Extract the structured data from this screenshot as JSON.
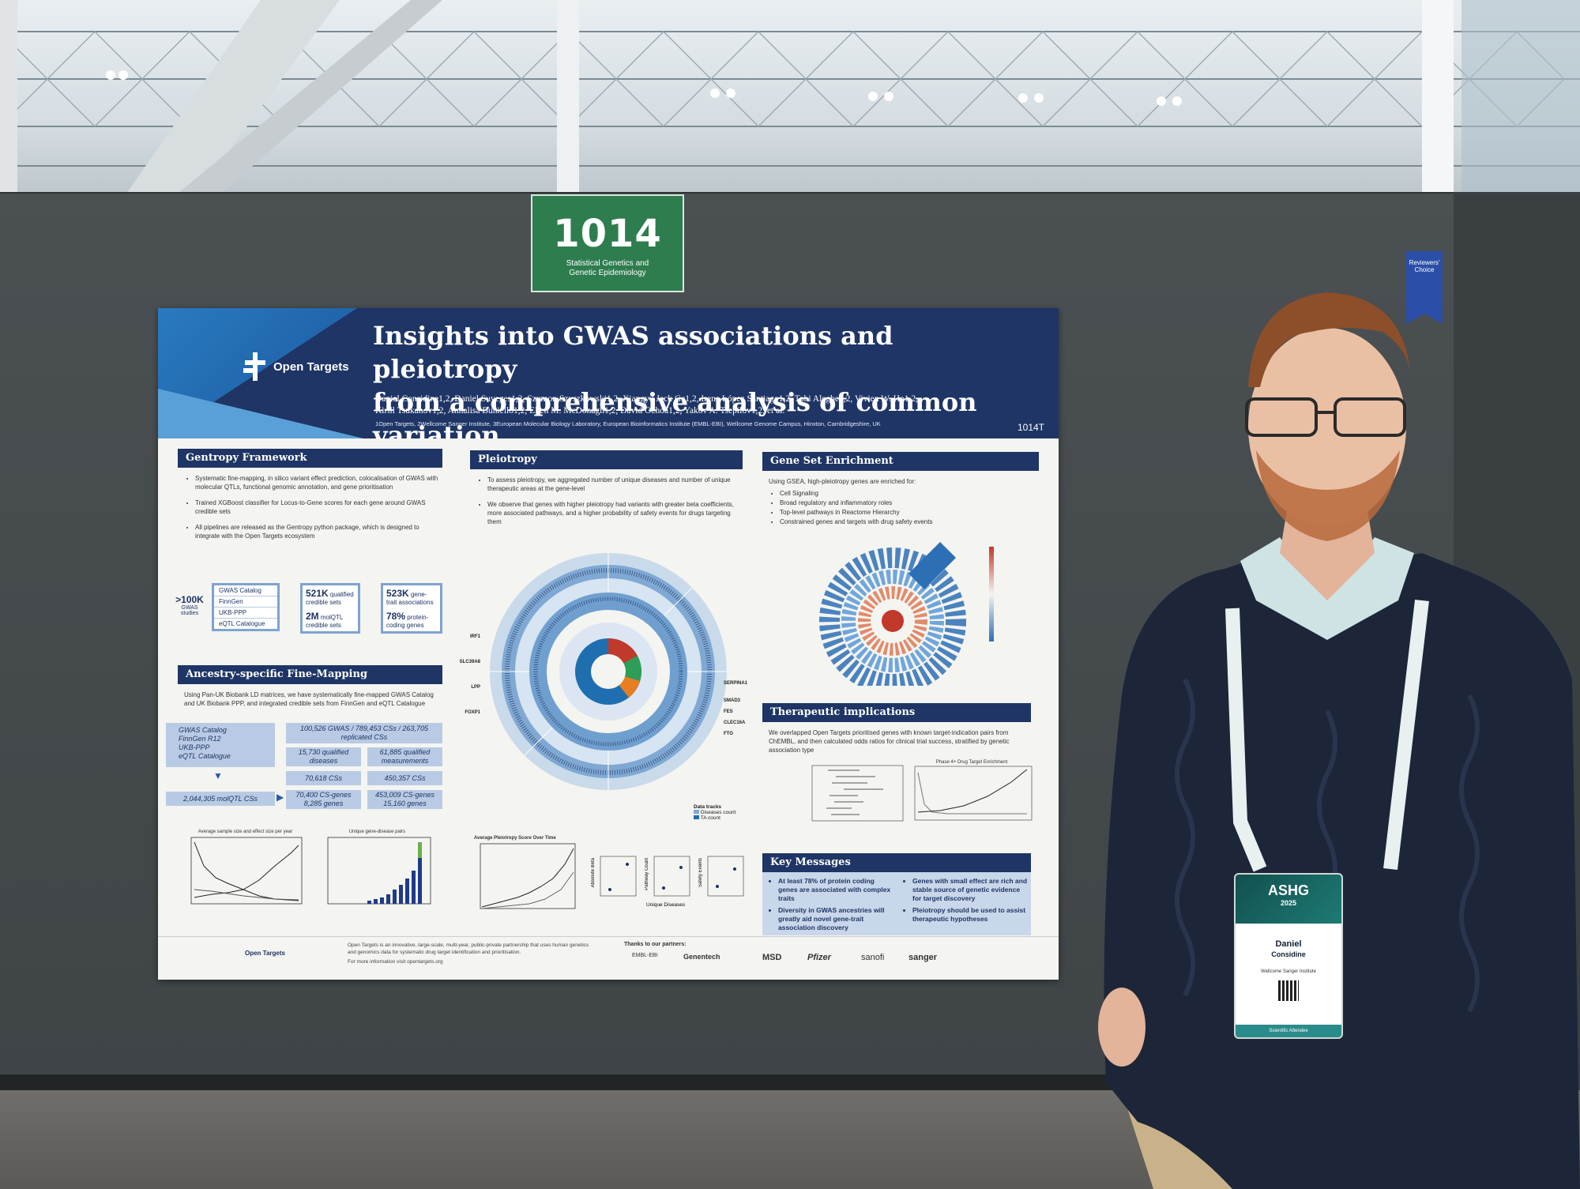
{
  "sign": {
    "number": "1014",
    "subtitle_line1": "Statistical Genetics and",
    "subtitle_line2": "Genetic Epidemiology"
  },
  "ribbon": {
    "text": "Reviewers' Choice"
  },
  "poster": {
    "logo": "Open Targets",
    "title_line1": "Insights into GWAS associations and pleiotropy",
    "title_line2": "from a comprehensive analysis of common variation",
    "authors_line1": "Daniel Considine1,2, Daniel Suveges1,2, Szymon Szyszkowski1,2, Xiangyu Jack Ge1,2, Irene López Santiago1,2, Tobi Alegbe1,2, Vivien W. Ho1,2,",
    "authors_line2": "Kirill Tsukanov1,2, Annalisa Buniello1,2, Ellen M. McDonagh1,2, David Ochoa1,2, Yakov A. Tsepilov1,2, et al.",
    "affiliations": "1Open Targets, 2Wellcome Sanger Institute, 3European Molecular Biology Laboratory, European Bioinformatics Institute (EMBL-EBI), Wellcome Genome Campus, Hinxton, Cambridgeshire, UK",
    "code": "1014T",
    "gentropy": {
      "heading": "Gentropy Framework",
      "bullets": [
        "Systematic fine-mapping, in silico variant effect prediction, colocalisation of GWAS with molecular QTLs, functional genomic annotation, and gene prioritisation",
        "Trained XGBoost classifier for Locus-to-Gene scores for each gene around GWAS credible sets",
        "All pipelines are released as the Gentropy python package, which is designed to integrate with the Open Targets ecosystem"
      ],
      "studies_stat": ">100K",
      "studies_label": "GWAS studies",
      "sources": [
        "GWAS Catalog",
        "FinnGen",
        "UKB-PPP",
        "eQTL Catalogue"
      ],
      "stat1": "521K",
      "stat1_label": "qualified credible sets",
      "stat2": "2M",
      "stat2_label": "molQTL credible sets",
      "stat3": "523K",
      "stat3_label": "gene-trait associations",
      "stat4": "78%",
      "stat4_label": "protein-coding genes"
    },
    "ancestry": {
      "heading": "Ancestry-specific Fine-Mapping",
      "intro": "Using Pan-UK Biobank LD matrices, we have systematically fine-mapped GWAS Catalog and UK Biobank PPP, and integrated credible sets from FinnGen and eQTL Catalogue",
      "sources": [
        "GWAS Catalog",
        "FinnGen R12",
        "UKB-PPP",
        "eQTL Catalogue"
      ],
      "box1": "100,526 GWAS / 789,453 CSs / 263,705 replicated CSs",
      "box2": "15,730 qualified diseases",
      "box3": "61,885 qualified measurements",
      "box4": "70,618 CSs",
      "box5": "450,357 CSs",
      "molqtl": "2,044,305 molQTL CSs",
      "box6": "70,400 CS-genes 8,285 genes",
      "box7": "453,009 CS-genes 15,160 genes",
      "chart1_title": "Average sample size and effect size per year",
      "chart2_title": "Unique gene-disease pairs"
    },
    "pleiotropy": {
      "heading": "Pleiotropy",
      "bullets": [
        "To assess pleiotropy, we aggregated number of unique diseases and number of unique therapeutic areas at the gene-level",
        "We observe that genes with higher pleiotropy had variants with greater beta coefficients, more associated pathways, and a higher probability of safety events for drugs targeting them"
      ],
      "genes_right": [
        "SERPINA1",
        "SMAD3",
        "FES",
        "CLEC16A",
        "FTO"
      ],
      "genes_left": [
        "IRF1",
        "SLC39A8",
        "LPP",
        "FOXP1"
      ],
      "tracks_title": "Data tracks",
      "track1": "Diseases count",
      "track2": "TA count",
      "chart_title": "Average Pleiotropy Score Over Time",
      "axis_beta": "Absolute Beta",
      "axis_pathway": "Pathway Count",
      "axis_safety": "Safety Events",
      "axis_unique": "Unique Diseases"
    },
    "gse": {
      "heading": "Gene Set Enrichment",
      "intro": "Using GSEA, high-pleiotropy genes are enriched for:",
      "bullets": [
        "Cell Signaling",
        "Broad regulatory and inflammatory roles",
        "Top-level pathways in Reactome Hierarchy",
        "Constrained genes and targets with drug safety events"
      ]
    },
    "therapeutic": {
      "heading": "Therapeutic implications",
      "text": "We overlapped Open Targets prioritised genes with known target-indication pairs from ChEMBL, and then calculated odds ratios for clinical trial success, stratified by genetic association type",
      "chart_title": "Phase 4+ Drug Target Enrichment"
    },
    "key": {
      "heading": "Key Messages",
      "left": [
        "At least 78% of protein coding genes are associated with complex traits",
        "Diversity in GWAS ancestries will greatly aid novel gene-trait association discovery"
      ],
      "right": [
        "Genes with small effect are rich and stable source of genetic evidence for target discovery",
        "Pleiotropy should be used to assist therapeutic hypotheses"
      ]
    },
    "footer": {
      "logo": "Open Targets",
      "blurb": "Open Targets is an innovative, large-scale, multi-year, public-private partnership that uses human genetics and genomics data for systematic drug target identification and prioritisation.",
      "more": "For more information visit opentargets.org",
      "thanks": "Thanks to our partners:",
      "partners": [
        "EMBL-EBI",
        "Genentech",
        "MSD",
        "Pfizer",
        "sanofi",
        "sanger"
      ]
    }
  },
  "badge": {
    "event": "ASHG",
    "year": "2025",
    "name_first": "Daniel",
    "name_last": "Considine",
    "org": "Wellcome Sanger Institute",
    "footer": "Scientific Attendee"
  },
  "colors": {
    "banner": "#1e3566",
    "section": "#1e3566",
    "sign": "#2e7d4f",
    "board": "#44494c"
  }
}
